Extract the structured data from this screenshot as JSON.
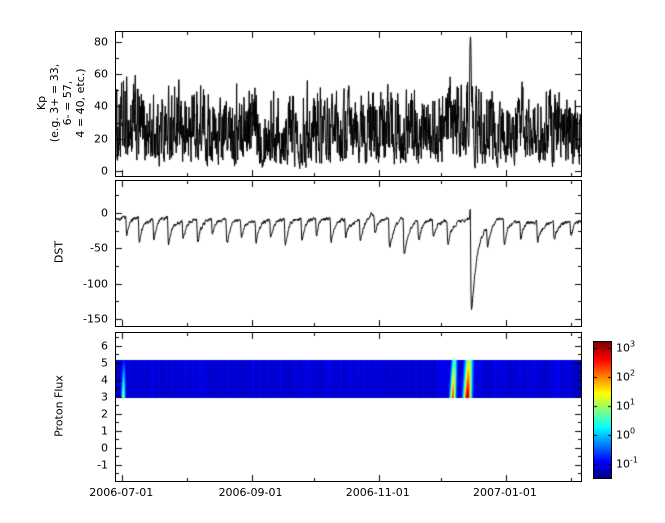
{
  "x_axis": {
    "total_days": 223,
    "major_ticks": [
      {
        "day": 3,
        "label": "2006-07-01"
      },
      {
        "day": 65,
        "label": "2006-09-01"
      },
      {
        "day": 126,
        "label": "2006-11-01"
      },
      {
        "day": 187,
        "label": "2007-01-01"
      }
    ],
    "minor_tick_days": [
      3,
      34,
      65,
      95,
      126,
      156,
      187,
      218
    ]
  },
  "chart_data": [
    {
      "type": "line",
      "name": "Kp index",
      "ylabel_lines": [
        "Kp",
        "(e.g. 3+ = 33,",
        "6- = 57,",
        "4 = 40, etc.)"
      ],
      "ylim": [
        -3,
        86
      ],
      "yticks": [
        {
          "v": 0,
          "label": "0"
        },
        {
          "v": 20,
          "label": "20"
        },
        {
          "v": 40,
          "label": "40"
        },
        {
          "v": 60,
          "label": "60"
        },
        {
          "v": 80,
          "label": "80"
        }
      ],
      "yminor_step": 10,
      "line_color": "#000000",
      "samples_per_day": 8,
      "seed": 1234,
      "envelope": [
        [
          0,
          50
        ],
        [
          8,
          62
        ],
        [
          16,
          48
        ],
        [
          24,
          55
        ],
        [
          32,
          50
        ],
        [
          40,
          58
        ],
        [
          48,
          45
        ],
        [
          56,
          52
        ],
        [
          64,
          60
        ],
        [
          72,
          48
        ],
        [
          80,
          55
        ],
        [
          88,
          50
        ],
        [
          96,
          58
        ],
        [
          104,
          45
        ],
        [
          112,
          52
        ],
        [
          120,
          48
        ],
        [
          128,
          55
        ],
        [
          136,
          60
        ],
        [
          144,
          50
        ],
        [
          152,
          45
        ],
        [
          160,
          55
        ],
        [
          168,
          62
        ],
        [
          176,
          55
        ],
        [
          184,
          48
        ],
        [
          192,
          52
        ],
        [
          200,
          45
        ],
        [
          208,
          55
        ],
        [
          216,
          50
        ],
        [
          223,
          48
        ]
      ],
      "spike": {
        "day": 170,
        "sigma": 0.4,
        "peak_value": 83
      }
    },
    {
      "type": "line",
      "name": "DST index",
      "ylabel": "DST",
      "ylim": [
        -160,
        45
      ],
      "yticks": [
        {
          "v": 0,
          "label": "0"
        },
        {
          "v": -50,
          "label": "-50"
        },
        {
          "v": -100,
          "label": "-100"
        },
        {
          "v": -150,
          "label": "-150"
        }
      ],
      "yminor_step": 25,
      "line_color": "#000000",
      "samples_per_day": 8,
      "seed": 987,
      "baseline": -10,
      "noise_amp": 7,
      "storms": [
        [
          5,
          -28,
          1.5
        ],
        [
          11,
          -40,
          1.6
        ],
        [
          18,
          -32,
          1.5
        ],
        [
          25,
          -45,
          1.8
        ],
        [
          32,
          -30,
          1.5
        ],
        [
          39,
          -38,
          1.6
        ],
        [
          46,
          -25,
          1.4
        ],
        [
          53,
          -42,
          1.7
        ],
        [
          60,
          -30,
          1.5
        ],
        [
          67,
          -35,
          1.6
        ],
        [
          74,
          -28,
          1.5
        ],
        [
          81,
          -45,
          1.8
        ],
        [
          89,
          -35,
          1.6
        ],
        [
          96,
          -30,
          1.5
        ],
        [
          103,
          -40,
          1.7
        ],
        [
          110,
          -28,
          1.4
        ],
        [
          117,
          -35,
          1.6
        ],
        [
          124,
          -30,
          1.5
        ],
        [
          131,
          -48,
          1.8
        ],
        [
          138,
          -60,
          2.0
        ],
        [
          145,
          -32,
          1.5
        ],
        [
          152,
          -28,
          1.4
        ],
        [
          159,
          -38,
          1.6
        ],
        [
          170.2,
          -148,
          2.8
        ],
        [
          178,
          -30,
          1.5
        ],
        [
          186,
          -40,
          1.7
        ],
        [
          194,
          -28,
          1.4
        ],
        [
          202,
          -35,
          1.6
        ],
        [
          210,
          -30,
          1.5
        ],
        [
          218,
          -25,
          1.4
        ]
      ],
      "sc_bump": {
        "day": 169.9,
        "amp": 16,
        "sigma": 0.2
      }
    },
    {
      "type": "heatmap",
      "name": "Proton Flux spectrogram",
      "ylabel": "Proton Flux",
      "ylim": [
        -1.95,
        6.75
      ],
      "yticks": [
        {
          "v": -1,
          "label": "-1"
        },
        {
          "v": 0,
          "label": "0"
        },
        {
          "v": 1,
          "label": "1"
        },
        {
          "v": 2,
          "label": "2"
        },
        {
          "v": 3,
          "label": "3"
        },
        {
          "v": 4,
          "label": "4"
        },
        {
          "v": 5,
          "label": "5"
        },
        {
          "v": 6,
          "label": "6"
        }
      ],
      "yminor_step": 0.5,
      "seed": 555,
      "band": [
        2.95,
        5.15
      ],
      "background_log": -1.15,
      "col_noise": 0.5,
      "vert_falloff": 0.85,
      "events": [
        {
          "day": 3.5,
          "width": 0.9,
          "peak": 1.0,
          "tilt": 0.15
        },
        {
          "day": 161.5,
          "width": 1.3,
          "peak": 2.4,
          "tilt": 0.35
        },
        {
          "day": 168.5,
          "width": 1.8,
          "peak": 3.05,
          "tilt": 0.35
        }
      ]
    }
  ],
  "colorbar": {
    "vmin": -1.5,
    "vmax": 3.2,
    "colormap": "jet",
    "ticks": [
      {
        "mantissa": "10",
        "exp": "3"
      },
      {
        "mantissa": "10",
        "exp": "2"
      },
      {
        "mantissa": "10",
        "exp": "1"
      },
      {
        "mantissa": "10",
        "exp": "0"
      },
      {
        "mantissa": "10",
        "exp": "-1"
      }
    ]
  }
}
